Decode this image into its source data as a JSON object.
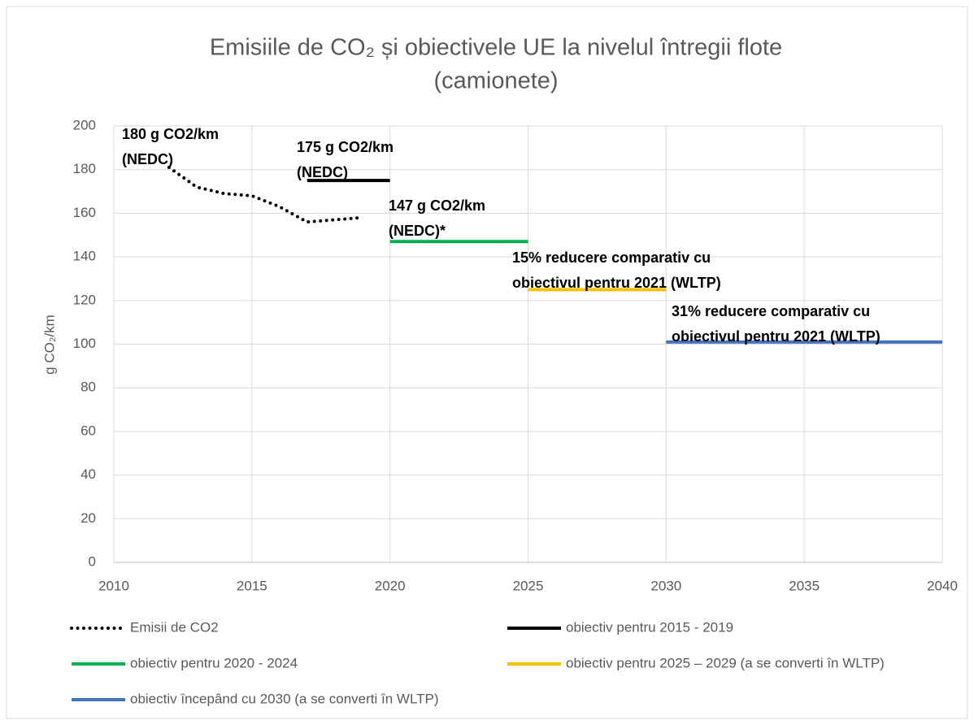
{
  "chart_data": {
    "type": "line",
    "title": [
      "Emisiile de CO₂ și obiectivele UE la nivelul întregii flote",
      "(camionete)"
    ],
    "y_label": "g CO₂/km",
    "xlim": [
      2010,
      2040
    ],
    "xticks": [
      2010,
      2015,
      2020,
      2025,
      2030,
      2035,
      2040
    ],
    "ylim": [
      0,
      200
    ],
    "yticks": [
      0,
      20,
      40,
      60,
      80,
      100,
      120,
      140,
      160,
      180,
      200
    ],
    "grid": true,
    "legend": "bottom",
    "series": [
      {
        "name": "Emisii de CO2",
        "color": "#000000",
        "style": "dotted",
        "x": [
          2012,
          2013,
          2014,
          2015,
          2016,
          2017,
          2018,
          2019
        ],
        "values": [
          181,
          172,
          169,
          168,
          163,
          156,
          157,
          158
        ]
      },
      {
        "name": "obiectiv pentru 2015 - 2019",
        "color": "#000000",
        "style": "solid",
        "x": [
          2017,
          2020
        ],
        "values": [
          175,
          175
        ]
      },
      {
        "name": "obiectiv pentru 2020 - 2024",
        "color": "#00b050",
        "style": "solid",
        "x": [
          2020,
          2025
        ],
        "values": [
          147,
          147
        ]
      },
      {
        "name": "obiectiv pentru 2025 – 2029 (a se converti în WLTP)",
        "color": "#ffc000",
        "style": "solid",
        "x": [
          2025,
          2030
        ],
        "values": [
          125,
          125
        ]
      },
      {
        "name": "obiectiv începând cu 2030 (a se converti în WLTP)",
        "color": "#4472c4",
        "style": "solid",
        "x": [
          2030,
          2040
        ],
        "values": [
          101,
          101
        ]
      }
    ],
    "annotations": [
      [
        "180 g CO2/km",
        "(NEDC)"
      ],
      [
        "175 g CO2/km",
        "(NEDC)"
      ],
      [
        "147 g CO2/km",
        "(NEDC)*"
      ],
      [
        "15% reducere comparativ cu",
        "obiectivul pentru 2021 (WLTP)"
      ],
      [
        "31% reducere comparativ cu",
        "obiectivul pentru 2021 (WLTP)"
      ]
    ]
  }
}
